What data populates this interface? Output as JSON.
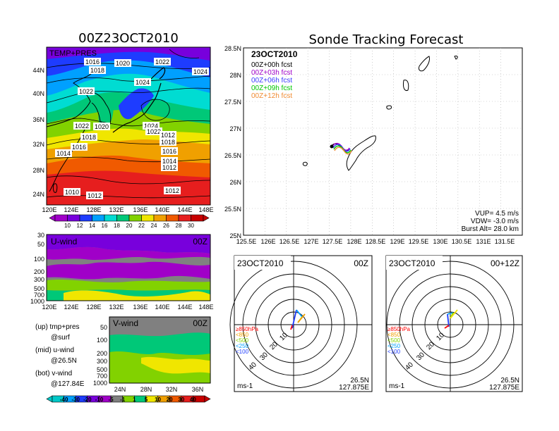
{
  "colors": {
    "scale": [
      "#a000c8",
      "#7800dc",
      "#1e3cff",
      "#00a0ff",
      "#00dcd2",
      "#00c878",
      "#82d200",
      "#f0e600",
      "#f0a000",
      "#f05a00",
      "#e61e1e",
      "#c80000"
    ],
    "wind": [
      "#00c8c8",
      "#00a0ff",
      "#1e3cff",
      "#7800dc",
      "#a000c8",
      "#808080",
      "#82d200",
      "#00c878",
      "#f0e600",
      "#f0a000",
      "#f05a00",
      "#e61e1e",
      "#c80000"
    ],
    "gray": "#909090",
    "fcst": [
      "#000000",
      "#a000c8",
      "#3c3cff",
      "#00c800",
      "#f08c32"
    ],
    "level": [
      "#ff0000",
      "#f0a000",
      "#82d200",
      "#00a0ff",
      "#1e3cff"
    ]
  },
  "left": {
    "title": "00Z23OCT2010",
    "map": {
      "label": "TEMP+PRES",
      "lat_ticks": [
        "44N",
        "40N",
        "36N",
        "32N",
        "28N",
        "24N"
      ],
      "lon_ticks": [
        "120E",
        "124E",
        "128E",
        "132E",
        "136E",
        "140E",
        "144E",
        "148E"
      ],
      "isobar_labels": [
        "1016",
        "1020",
        "1022",
        "1018",
        "1024",
        "1022",
        "1024",
        "1022",
        "1024",
        "1020",
        "1022",
        "1018",
        "1016",
        "1018",
        "1012",
        "1014",
        "1014",
        "1016",
        "1012",
        "1010",
        "1012",
        "1012"
      ]
    },
    "colorbar": [
      "10",
      "12",
      "14",
      "16",
      "18",
      "20",
      "22",
      "24",
      "26",
      "28",
      "30"
    ],
    "uwind": {
      "label": "U-wind",
      "time": "00Z",
      "levels": [
        "30",
        "50",
        "100",
        "200",
        "300",
        "500",
        "700",
        "1000"
      ],
      "lon_ticks": [
        "120E",
        "124E",
        "128E",
        "132E",
        "136E",
        "140E",
        "144E",
        "148E"
      ]
    },
    "vwind": {
      "label": "V-wind",
      "time": "00Z",
      "levels": [
        "50",
        "100",
        "200",
        "300",
        "500",
        "700",
        "1000"
      ],
      "lat_ticks": [
        "24N",
        "28N",
        "32N",
        "36N"
      ]
    },
    "legend": [
      {
        "a": "(up)  tmp+pres",
        "b": "@surf"
      },
      {
        "a": "(mid)  u-wind",
        "b": "@26.5N"
      },
      {
        "a": "(bot)  v-wind",
        "b": "@127.84E"
      }
    ],
    "wind_colorbar": [
      "-40",
      "-30",
      "-20",
      "-10",
      "-5",
      "-1",
      "1",
      "5",
      "10",
      "20",
      "30",
      "40"
    ]
  },
  "right": {
    "title": "Sonde Tracking Forecast",
    "date": "23OCT2010",
    "fcst_lines": [
      "00Z+00h fcst",
      "00Z+03h fcst",
      "00Z+06h fcst",
      "00Z+09h fcst",
      "00Z+12h fcst"
    ],
    "lat_ticks": [
      "28.5N",
      "28N",
      "27.5N",
      "27N",
      "26.5N",
      "26N",
      "25.5N",
      "25N"
    ],
    "lon_ticks": [
      "125.5E",
      "126E",
      "126.5E",
      "127E",
      "127.5E",
      "128E",
      "128.5E",
      "129E",
      "129.5E",
      "130E",
      "130.5E",
      "131E",
      "131.5E"
    ],
    "info": [
      "VUP=  4.5  m/s",
      "VDW= -3.0  m/s",
      "Burst Alt=  28.0  km"
    ]
  },
  "hodos": [
    {
      "date": "23OCT2010",
      "time": "00Z"
    },
    {
      "date": "23OCT2010",
      "time": "00+12Z"
    }
  ],
  "hodo_common": {
    "rings": [
      "10",
      "20",
      "30",
      "40"
    ],
    "levels": [
      "≥850hPa",
      "<850",
      "<500",
      "<250",
      "<100"
    ],
    "unit": "ms-1",
    "loc1": "26.5N",
    "loc2": "127.875E"
  }
}
